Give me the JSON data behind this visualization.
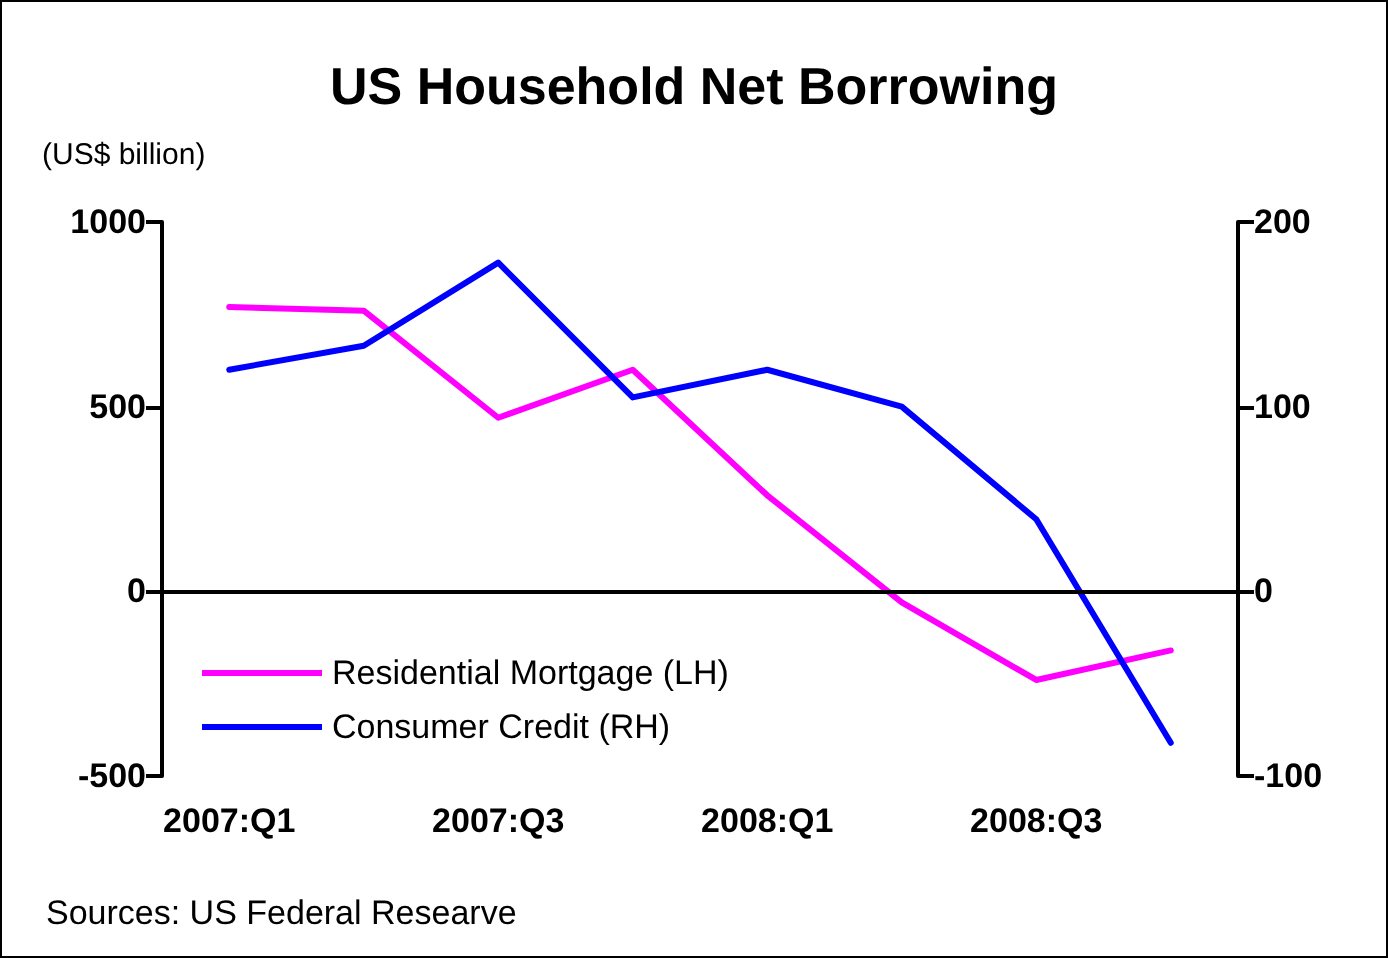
{
  "chart_data": {
    "type": "line",
    "title": "US Household Net Borrowing",
    "annotations": [
      "(US$ billion)",
      "Sources: US Federal Researve"
    ],
    "categories": [
      "2007:Q1",
      null,
      "2007:Q3",
      null,
      "2008:Q1",
      null,
      "2008:Q3",
      null
    ],
    "series": [
      {
        "name": "Residential Mortgage (LH)",
        "color": "#ff00ff",
        "values": [
          770,
          760,
          470,
          600,
          260,
          -30,
          -240,
          -160
        ]
      },
      {
        "name": "Consumer Credit (RH)",
        "color": "#0000ff",
        "axis": "y2",
        "values": [
          120,
          133,
          178,
          105,
          120,
          100,
          39,
          -82
        ]
      }
    ],
    "ylim": [
      -500,
      1000
    ],
    "yticks": [
      -500,
      0,
      500,
      1000
    ],
    "y2lim": [
      -100,
      200
    ],
    "y2ticks": [
      -100,
      0,
      100,
      200
    ],
    "grid": false,
    "ref_lines": [
      {
        "axis": "y",
        "value": 0,
        "color": "#000000",
        "line_style": "solid"
      }
    ],
    "legend": "bottom left",
    "marker": "none",
    "line_style": "solid"
  }
}
